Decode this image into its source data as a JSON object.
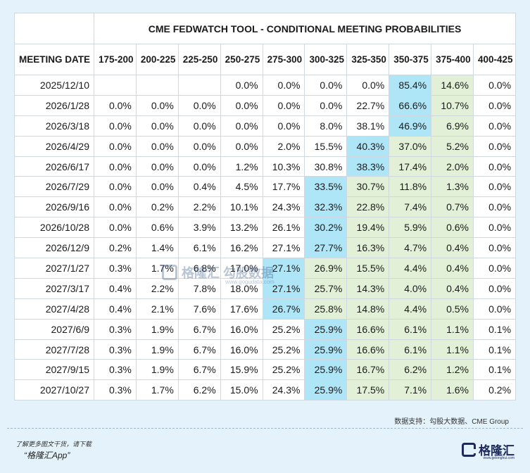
{
  "chart_data": {
    "type": "table",
    "title": "CME FEDWATCH TOOL - CONDITIONAL MEETING PROBABILITIES",
    "row_header_label": "MEETING DATE",
    "columns": [
      "175-200",
      "200-225",
      "225-250",
      "250-275",
      "275-300",
      "300-325",
      "325-350",
      "350-375",
      "375-400",
      "400-425"
    ],
    "rows": [
      {
        "date": "2025/12/10",
        "values": [
          "",
          "",
          "",
          "0.0%",
          "0.0%",
          "0.0%",
          "0.0%",
          "85.4%",
          "14.6%",
          "0.0%"
        ],
        "blue": 7,
        "green": [
          8
        ]
      },
      {
        "date": "2026/1/28",
        "values": [
          "0.0%",
          "0.0%",
          "0.0%",
          "0.0%",
          "0.0%",
          "0.0%",
          "22.7%",
          "66.6%",
          "10.7%",
          "0.0%"
        ],
        "blue": 7,
        "green": [
          8
        ]
      },
      {
        "date": "2026/3/18",
        "values": [
          "0.0%",
          "0.0%",
          "0.0%",
          "0.0%",
          "0.0%",
          "8.0%",
          "38.1%",
          "46.9%",
          "6.9%",
          "0.0%"
        ],
        "blue": 7,
        "green": [
          8
        ]
      },
      {
        "date": "2026/4/29",
        "values": [
          "0.0%",
          "0.0%",
          "0.0%",
          "0.0%",
          "2.0%",
          "15.5%",
          "40.3%",
          "37.0%",
          "5.2%",
          "0.0%"
        ],
        "blue": 6,
        "green": [
          7,
          8
        ]
      },
      {
        "date": "2026/6/17",
        "values": [
          "0.0%",
          "0.0%",
          "0.0%",
          "1.2%",
          "10.3%",
          "30.8%",
          "38.3%",
          "17.4%",
          "2.0%",
          "0.0%"
        ],
        "blue": 6,
        "green": [
          7,
          8
        ]
      },
      {
        "date": "2026/7/29",
        "values": [
          "0.0%",
          "0.0%",
          "0.4%",
          "4.5%",
          "17.7%",
          "33.5%",
          "30.7%",
          "11.8%",
          "1.3%",
          "0.0%"
        ],
        "blue": 5,
        "green": [
          6,
          7,
          8
        ]
      },
      {
        "date": "2026/9/16",
        "values": [
          "0.0%",
          "0.2%",
          "2.2%",
          "10.1%",
          "24.3%",
          "32.3%",
          "22.8%",
          "7.4%",
          "0.7%",
          "0.0%"
        ],
        "blue": 5,
        "green": [
          6,
          7,
          8
        ]
      },
      {
        "date": "2026/10/28",
        "values": [
          "0.0%",
          "0.6%",
          "3.9%",
          "13.2%",
          "26.1%",
          "30.2%",
          "19.4%",
          "5.9%",
          "0.6%",
          "0.0%"
        ],
        "blue": 5,
        "green": [
          6,
          7,
          8
        ]
      },
      {
        "date": "2026/12/9",
        "values": [
          "0.2%",
          "1.4%",
          "6.1%",
          "16.2%",
          "27.1%",
          "27.7%",
          "16.3%",
          "4.7%",
          "0.4%",
          "0.0%"
        ],
        "blue": 5,
        "green": [
          6,
          7,
          8
        ]
      },
      {
        "date": "2027/1/27",
        "values": [
          "0.3%",
          "1.7%",
          "6.8%",
          "17.0%",
          "27.1%",
          "26.9%",
          "15.5%",
          "4.4%",
          "0.4%",
          "0.0%"
        ],
        "blue": 4,
        "green": [
          5,
          6,
          7,
          8
        ]
      },
      {
        "date": "2027/3/17",
        "values": [
          "0.4%",
          "2.2%",
          "7.8%",
          "18.0%",
          "27.1%",
          "25.7%",
          "14.3%",
          "4.0%",
          "0.4%",
          "0.0%"
        ],
        "blue": 4,
        "green": [
          5,
          6,
          7,
          8
        ]
      },
      {
        "date": "2027/4/28",
        "values": [
          "0.4%",
          "2.1%",
          "7.6%",
          "17.6%",
          "26.7%",
          "25.8%",
          "14.8%",
          "4.4%",
          "0.5%",
          "0.0%"
        ],
        "blue": 4,
        "green": [
          5,
          6,
          7,
          8
        ]
      },
      {
        "date": "2027/6/9",
        "values": [
          "0.3%",
          "1.9%",
          "6.7%",
          "16.0%",
          "25.2%",
          "25.9%",
          "16.6%",
          "6.1%",
          "1.1%",
          "0.1%"
        ],
        "blue": 5,
        "green": [
          6,
          7,
          8
        ]
      },
      {
        "date": "2027/7/28",
        "values": [
          "0.3%",
          "1.9%",
          "6.7%",
          "16.0%",
          "25.2%",
          "25.9%",
          "16.6%",
          "6.1%",
          "1.1%",
          "0.1%"
        ],
        "blue": 5,
        "green": [
          6,
          7,
          8
        ]
      },
      {
        "date": "2027/9/15",
        "values": [
          "0.3%",
          "1.9%",
          "6.7%",
          "15.9%",
          "25.2%",
          "25.9%",
          "16.7%",
          "6.2%",
          "1.2%",
          "0.1%"
        ],
        "blue": 5,
        "green": [
          6,
          7,
          8
        ]
      },
      {
        "date": "2027/10/27",
        "values": [
          "0.3%",
          "1.7%",
          "6.2%",
          "15.0%",
          "24.3%",
          "25.9%",
          "17.5%",
          "7.1%",
          "1.6%",
          "0.2%"
        ],
        "blue": 5,
        "green": [
          6,
          7,
          8
        ]
      }
    ],
    "colors": {
      "highlight_max": "#aee6f7",
      "highlight_current": "#e1f0d6"
    }
  },
  "source_note": "数据支持：勾股大数据、CME Group",
  "footer": {
    "note": "了解更多图文干货，请下载",
    "app": "“格隆汇App”"
  },
  "brand": {
    "name": "格隆汇",
    "url": "www.gelonghui.com"
  },
  "watermark": {
    "text": "格隆汇 勾股数据",
    "url": "www.gogudata.com"
  }
}
